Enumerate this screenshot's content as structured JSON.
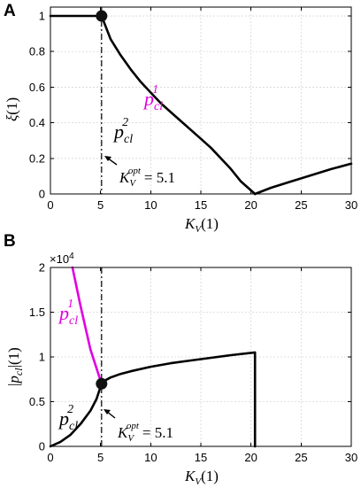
{
  "chart_data": [
    {
      "panel": "A",
      "type": "line",
      "xlabel_main": "K",
      "xlabel_sub": "V",
      "xlabel_unit": "(1)",
      "ylabel_greek": "ξ",
      "ylabel_unit": "(1)",
      "xlim": [
        0,
        30
      ],
      "ylim": [
        0,
        1.05
      ],
      "xticks": [
        0,
        5,
        10,
        15,
        20,
        25,
        30
      ],
      "yticks": [
        0,
        0.2,
        0.4,
        0.6,
        0.8,
        1
      ],
      "ytick_labels": [
        "0",
        "0.2",
        "0.4",
        "0.6",
        "0.8",
        "1"
      ],
      "grid": true,
      "series": [
        {
          "color": "#000000",
          "x": [
            0,
            5.1,
            6,
            7,
            8,
            9,
            10,
            11,
            12,
            13,
            14,
            15,
            16,
            17,
            18,
            19,
            20.4
          ],
          "values": [
            1,
            1,
            0.87,
            0.78,
            0.7,
            0.63,
            0.57,
            0.51,
            0.46,
            0.41,
            0.36,
            0.31,
            0.26,
            0.2,
            0.14,
            0.07,
            0
          ]
        },
        {
          "color": "#000000",
          "x": [
            20.4,
            22,
            24,
            26,
            28,
            30
          ],
          "values": [
            0,
            0.035,
            0.07,
            0.105,
            0.14,
            0.17
          ]
        }
      ],
      "vline_x": 5.1,
      "marker": {
        "x": 5.1,
        "y": 1
      },
      "labels": {
        "p1_base": "p",
        "p1_sub": "cl",
        "p1_sup": "1",
        "p2_base": "p",
        "p2_sub": "cl",
        "p2_sup": "2",
        "kopt_base": "K",
        "kopt_sub": "V",
        "kopt_sup": "opt",
        "kopt_value": "= 5.1"
      }
    },
    {
      "panel": "B",
      "type": "line",
      "xlabel_main": "K",
      "xlabel_sub": "V",
      "xlabel_unit": "(1)",
      "ylabel_p": "p",
      "ylabel_sub": "cl",
      "ylabel_unit": "(1)",
      "xlim": [
        0,
        30
      ],
      "ylim": [
        0,
        2
      ],
      "xticks": [
        0,
        5,
        10,
        15,
        20,
        25,
        30
      ],
      "yticks": [
        0,
        0.5,
        1,
        1.5,
        2
      ],
      "ytick_labels": [
        "0",
        "0.5",
        "1",
        "1.5",
        "2"
      ],
      "exponent_label": "×10",
      "exponent_power": "4",
      "grid": true,
      "series": [
        {
          "name_ref": "p_cl^1",
          "color": "#e000e0",
          "x": [
            2.2,
            3,
            4,
            5.1
          ],
          "values": [
            2.0,
            1.57,
            1.08,
            0.7
          ]
        },
        {
          "name_ref": "p_cl^2",
          "color": "#000000",
          "x": [
            0,
            1,
            2,
            3,
            4,
            4.6,
            5.1
          ],
          "values": [
            0,
            0.05,
            0.13,
            0.25,
            0.4,
            0.53,
            0.7
          ]
        },
        {
          "color": "#000000",
          "x": [
            5.1,
            5.5,
            6,
            7,
            8,
            10,
            12,
            14,
            16,
            18,
            20.4,
            20.4
          ],
          "values": [
            0.7,
            0.74,
            0.77,
            0.81,
            0.84,
            0.89,
            0.93,
            0.96,
            0.99,
            1.02,
            1.05,
            0
          ]
        }
      ],
      "vline_x": 5.1,
      "marker": {
        "x": 5.1,
        "y": 0.7
      },
      "labels": {
        "p1_base": "p",
        "p1_sub": "cl",
        "p1_sup": "1",
        "p2_base": "p",
        "p2_sub": "cl",
        "p2_sup": "2",
        "kopt_base": "K",
        "kopt_sub": "V",
        "kopt_sup": "opt",
        "kopt_value": "= 5.1"
      }
    }
  ]
}
